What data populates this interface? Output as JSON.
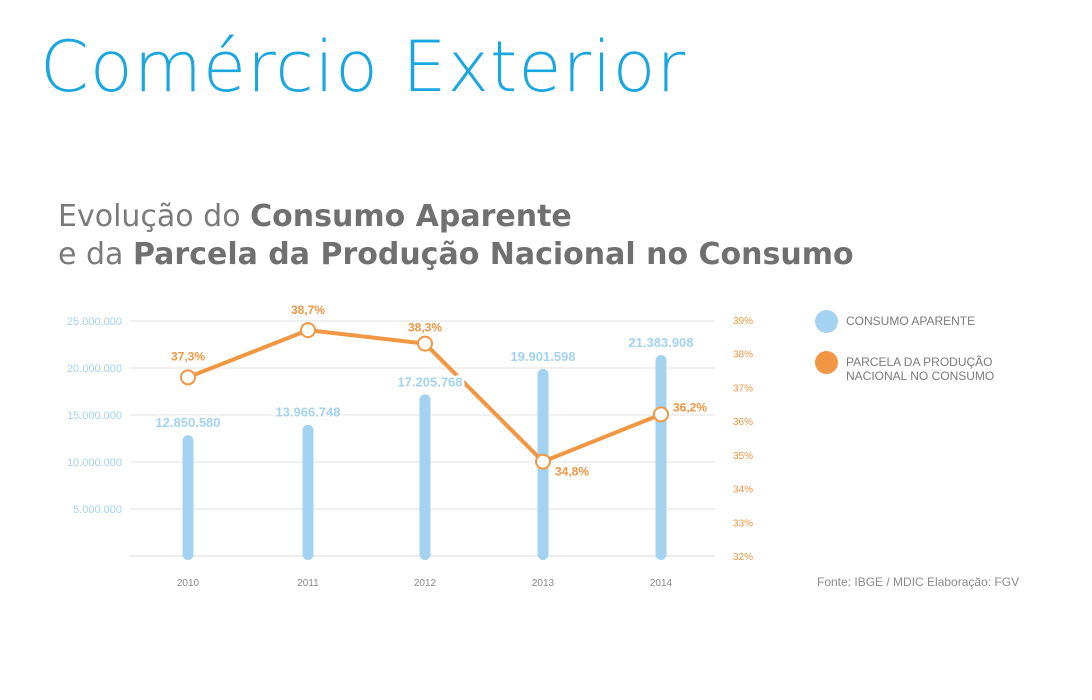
{
  "title": "Comércio Exterior",
  "subtitle": {
    "line1_regular": "Evolução do ",
    "line1_bold": "Consumo Aparente",
    "line2_regular": "e da ",
    "line2_bold": "Parcela da Produção Nacional no Consumo"
  },
  "colors": {
    "bar": "#a3d3f1",
    "line": "#f19642",
    "title": "#1aa6df"
  },
  "chart_data": {
    "type": "bar+line",
    "categories": [
      "2010",
      "2011",
      "2012",
      "2013",
      "2014"
    ],
    "series": [
      {
        "name": "CONSUMO APARENTE",
        "type": "bar",
        "axis": "left",
        "values": [
          12850580,
          13966748,
          17205768,
          19901598,
          21383908
        ],
        "labels": [
          "12.850.580",
          "13.966.748",
          "17.205.768",
          "19.901.598",
          "21.383.908"
        ]
      },
      {
        "name": "PARCELA DA PRODUÇÃO NACIONAL NO CONSUMO",
        "type": "line",
        "axis": "right",
        "values": [
          37.3,
          38.7,
          38.3,
          34.8,
          36.2
        ],
        "labels": [
          "37,3%",
          "38,7%",
          "38,3%",
          "34,8%",
          "36,2%"
        ]
      }
    ],
    "left_axis": {
      "range": [
        0,
        25000000
      ],
      "ticks": [
        5000000,
        10000000,
        15000000,
        20000000,
        25000000
      ],
      "tick_labels": [
        "5.000.000",
        "10.000.000",
        "15.000.000",
        "20.000.000",
        "25.000.000"
      ]
    },
    "right_axis": {
      "range": [
        32,
        39
      ],
      "ticks": [
        32,
        33,
        34,
        35,
        36,
        37,
        38,
        39
      ],
      "tick_labels": [
        "32%",
        "33%",
        "34%",
        "35%",
        "36%",
        "37%",
        "38%",
        "39%"
      ]
    },
    "grid": true,
    "legend_position": "right"
  },
  "legend": [
    "CONSUMO APARENTE",
    "PARCELA DA PRODUÇÃO NACIONAL NO CONSUMO"
  ],
  "source": "Fonte: IBGE / MDIC Elaboração: FGV"
}
